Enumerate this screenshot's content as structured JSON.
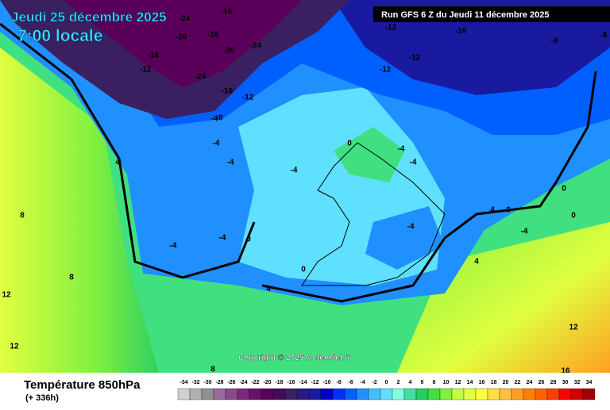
{
  "header": {
    "date": "Jeudi 25 décembre 2025",
    "time": "7:00 locale",
    "run": "Run GFS 6 Z du Jeudi 11 décembre 2025"
  },
  "copyright": "Copyright © 2025 Meteociel.fr",
  "footer": {
    "title": "Température 850hPa",
    "lead": "(+ 336h)"
  },
  "legend": {
    "values": [
      -34,
      -32,
      -30,
      -28,
      -26,
      -24,
      -22,
      -20,
      -18,
      -16,
      -14,
      -12,
      -10,
      -8,
      -6,
      -4,
      -2,
      0,
      2,
      4,
      6,
      8,
      10,
      12,
      14,
      16,
      18,
      20,
      22,
      24,
      26,
      28,
      30,
      32,
      34
    ],
    "colors": [
      "#d0d0d0",
      "#b0b0b0",
      "#909090",
      "#9a6a9a",
      "#8a4a8a",
      "#7a2a7a",
      "#6a106a",
      "#5a005a",
      "#4a0a5a",
      "#3a2060",
      "#2a1a80",
      "#1a1aa0",
      "#0000c8",
      "#0030ff",
      "#0060ff",
      "#2090ff",
      "#40c0ff",
      "#60e0ff",
      "#80ffe0",
      "#40e0a0",
      "#20d060",
      "#40e040",
      "#80f040",
      "#c0ff40",
      "#e0ff40",
      "#ffff40",
      "#ffe040",
      "#ffc040",
      "#ffa020",
      "#ff8000",
      "#ff6000",
      "#ff4000",
      "#ff0000",
      "#d00000",
      "#a00000"
    ]
  },
  "contour_labels": [
    -24,
    -16,
    -20,
    -16,
    -20,
    -24,
    -16,
    -12,
    -24,
    -16,
    -12,
    -12,
    -12,
    -16,
    -12,
    -8,
    -8,
    -4,
    -4,
    -4,
    -4,
    -4,
    0,
    -4,
    0,
    -4,
    -4,
    -4,
    0,
    -4,
    0,
    0,
    4,
    4,
    8,
    8,
    12,
    12,
    16,
    4,
    4,
    -8,
    0,
    8,
    12
  ]
}
